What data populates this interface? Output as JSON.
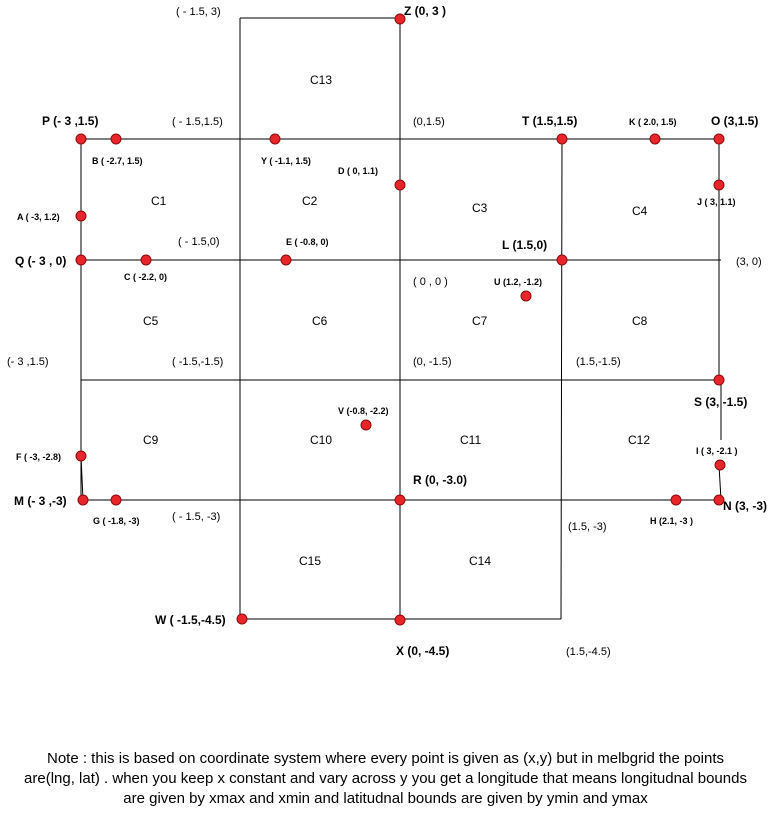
{
  "points": [
    {
      "id": "P",
      "label": "P (- 3 ,1.5)",
      "style": "bold"
    },
    {
      "id": "B",
      "label": "B ( -2.7, 1.5)",
      "style": "small"
    },
    {
      "id": "Y",
      "label": "Y ( -1.1, 1.5)",
      "style": "small"
    },
    {
      "id": "T",
      "label": "T (1.5,1.5)",
      "style": "bold"
    },
    {
      "id": "K",
      "label": "K ( 2.0, 1.5)",
      "style": "small"
    },
    {
      "id": "O",
      "label": "O (3,1.5)",
      "style": "bold"
    },
    {
      "id": "Z",
      "label": "Z (0, 3 )",
      "style": "bold"
    },
    {
      "id": "D",
      "label": "D ( 0, 1.1)",
      "style": "small"
    },
    {
      "id": "J",
      "label": "J ( 3, 1.1)",
      "style": "small"
    },
    {
      "id": "A",
      "label": "A ( -3, 1.2)",
      "style": "small"
    },
    {
      "id": "Q",
      "label": "Q (- 3 , 0)",
      "style": "bold"
    },
    {
      "id": "C",
      "label": "C ( -2.2, 0)",
      "style": "small"
    },
    {
      "id": "E",
      "label": "E ( -0.8, 0)",
      "style": "small"
    },
    {
      "id": "L",
      "label": "L (1.5,0)",
      "style": "bold"
    },
    {
      "id": "U",
      "label": "U (1.2, -1.2)",
      "style": "small"
    },
    {
      "id": "S",
      "label": "S (3, -1.5)",
      "style": "bold"
    },
    {
      "id": "V",
      "label": "V (-0.8, -2.2)",
      "style": "small"
    },
    {
      "id": "I",
      "label": "I ( 3, -2.1 )",
      "style": "small"
    },
    {
      "id": "F",
      "label": "F ( -3, -2.8)",
      "style": "small"
    },
    {
      "id": "M",
      "label": "M (- 3 ,-3)",
      "style": "bold"
    },
    {
      "id": "G",
      "label": "G ( -1.8, -3)",
      "style": "small"
    },
    {
      "id": "R",
      "label": "R (0, -3.0)",
      "style": "bold"
    },
    {
      "id": "H",
      "label": "H (2.1, -3 )",
      "style": "small"
    },
    {
      "id": "N",
      "label": "N (3, -3)",
      "style": "bold"
    },
    {
      "id": "W",
      "label": "W ( -1.5,-4.5)",
      "style": "bold"
    },
    {
      "id": "X",
      "label": "X (0, -4.5)",
      "style": "bold"
    }
  ],
  "coordinate_labels": [
    "( - 1.5, 3)",
    "( - 1.5,1.5)",
    "(0,1.5)",
    "( - 1.5,0)",
    "(3, 0)",
    "( 0 , 0 )",
    "(- 3 ,1.5)",
    "( -1.5,-1.5)",
    "(0, -1.5)",
    "(1.5,-1.5)",
    "( - 1.5, -3)",
    "(1.5, -3)",
    "(1.5,-4.5)"
  ],
  "cells": [
    "C13",
    "C1",
    "C2",
    "C3",
    "C4",
    "C5",
    "C6",
    "C7",
    "C8",
    "C9",
    "C10",
    "C11",
    "C12",
    "C15",
    "C14"
  ],
  "note": "Note : this is based on coordinate system where every point is given as (x,y) but in melbgrid the points are(lng, lat) . when you keep x constant and vary across y you get a longitude that means longitudnal bounds are given by xmax and xmin and latitudnal bounds are given by ymin and ymax"
}
